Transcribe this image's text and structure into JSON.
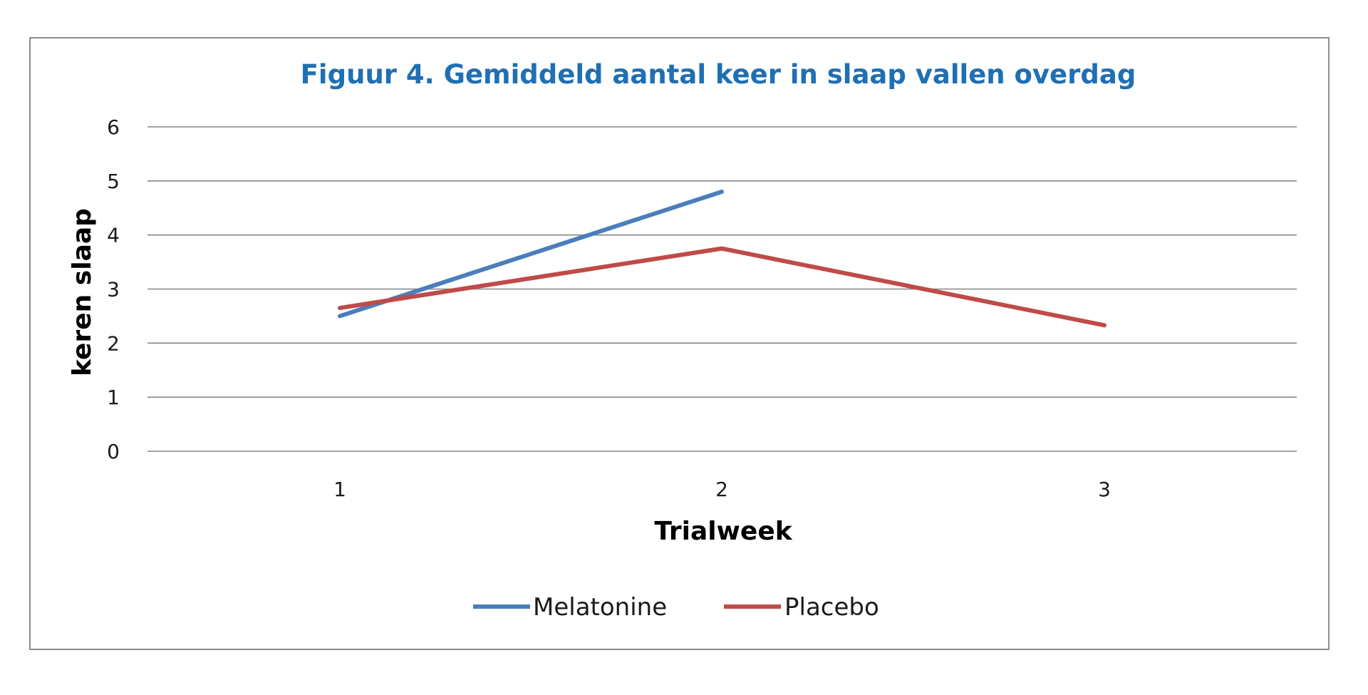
{
  "chart_data": {
    "type": "line",
    "title": "Figuur 4.  Gemiddeld aantal keer in slaap vallen overdag",
    "xlabel": "Trialweek",
    "ylabel": "keren slaap",
    "categories": [
      "1",
      "2",
      "3"
    ],
    "y_ticks": [
      "0",
      "1",
      "2",
      "3",
      "4",
      "5",
      "6"
    ],
    "ylim": [
      0,
      6
    ],
    "grid": true,
    "legend_position": "bottom",
    "series": [
      {
        "name": "Melatonine",
        "color": "#4a7ebb",
        "values": [
          2.5,
          4.8,
          null
        ]
      },
      {
        "name": "Placebo",
        "color": "#be4b48",
        "values": [
          2.65,
          3.75,
          2.33
        ]
      }
    ]
  }
}
